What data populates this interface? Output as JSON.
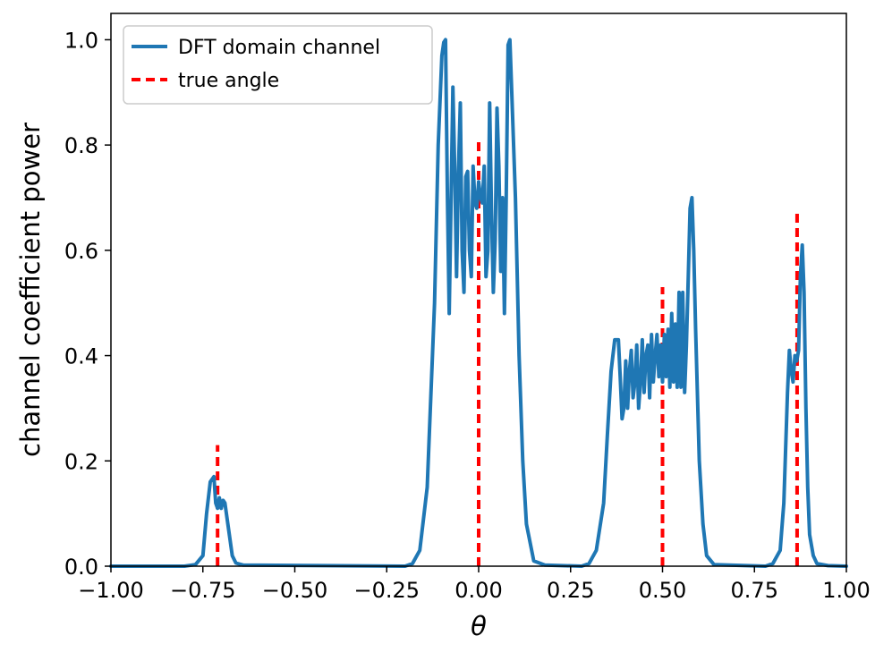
{
  "chart_data": {
    "type": "line",
    "xlabel": "θ",
    "ylabel": "channel coefficient power",
    "xlim": [
      -1.0,
      1.0
    ],
    "ylim": [
      0.0,
      1.05
    ],
    "x_ticks": [
      "−1.00",
      "−0.75",
      "−0.50",
      "−0.25",
      "0.00",
      "0.25",
      "0.50",
      "0.75",
      "1.00"
    ],
    "x_tick_values": [
      -1.0,
      -0.75,
      -0.5,
      -0.25,
      0.0,
      0.25,
      0.5,
      0.75,
      1.0
    ],
    "y_ticks": [
      "0.0",
      "0.2",
      "0.4",
      "0.6",
      "0.8",
      "1.0"
    ],
    "y_tick_values": [
      0.0,
      0.2,
      0.4,
      0.6,
      0.8,
      1.0
    ],
    "grid": false,
    "legend_position": "top-left",
    "series": [
      {
        "name": "DFT domain channel",
        "style": "solid",
        "color": "#1f77b4",
        "points": [
          [
            -1.0,
            0.0
          ],
          [
            -0.8,
            0.0
          ],
          [
            -0.77,
            0.003
          ],
          [
            -0.75,
            0.02
          ],
          [
            -0.74,
            0.1
          ],
          [
            -0.73,
            0.16
          ],
          [
            -0.72,
            0.17
          ],
          [
            -0.715,
            0.12
          ],
          [
            -0.71,
            0.11
          ],
          [
            -0.705,
            0.13
          ],
          [
            -0.7,
            0.11
          ],
          [
            -0.695,
            0.125
          ],
          [
            -0.69,
            0.12
          ],
          [
            -0.68,
            0.07
          ],
          [
            -0.67,
            0.02
          ],
          [
            -0.66,
            0.006
          ],
          [
            -0.64,
            0.002
          ],
          [
            -0.2,
            0.0
          ],
          [
            -0.18,
            0.005
          ],
          [
            -0.16,
            0.03
          ],
          [
            -0.14,
            0.15
          ],
          [
            -0.12,
            0.5
          ],
          [
            -0.11,
            0.8
          ],
          [
            -0.1,
            0.97
          ],
          [
            -0.095,
            0.995
          ],
          [
            -0.09,
            1.0
          ],
          [
            -0.085,
            0.7
          ],
          [
            -0.08,
            0.48
          ],
          [
            -0.075,
            0.7
          ],
          [
            -0.07,
            0.91
          ],
          [
            -0.065,
            0.75
          ],
          [
            -0.06,
            0.55
          ],
          [
            -0.055,
            0.75
          ],
          [
            -0.05,
            0.88
          ],
          [
            -0.045,
            0.6
          ],
          [
            -0.04,
            0.52
          ],
          [
            -0.035,
            0.74
          ],
          [
            -0.03,
            0.75
          ],
          [
            -0.025,
            0.6
          ],
          [
            -0.02,
            0.55
          ],
          [
            -0.015,
            0.76
          ],
          [
            -0.01,
            0.69
          ],
          [
            -0.005,
            0.68
          ],
          [
            0.0,
            0.73
          ],
          [
            0.005,
            0.7
          ],
          [
            0.01,
            0.69
          ],
          [
            0.015,
            0.76
          ],
          [
            0.02,
            0.55
          ],
          [
            0.025,
            0.6
          ],
          [
            0.03,
            0.88
          ],
          [
            0.035,
            0.67
          ],
          [
            0.04,
            0.52
          ],
          [
            0.045,
            0.62
          ],
          [
            0.05,
            0.87
          ],
          [
            0.055,
            0.76
          ],
          [
            0.06,
            0.56
          ],
          [
            0.065,
            0.7
          ],
          [
            0.07,
            0.48
          ],
          [
            0.075,
            0.7
          ],
          [
            0.08,
            0.99
          ],
          [
            0.085,
            1.0
          ],
          [
            0.09,
            0.9
          ],
          [
            0.1,
            0.7
          ],
          [
            0.11,
            0.4
          ],
          [
            0.12,
            0.2
          ],
          [
            0.13,
            0.08
          ],
          [
            0.15,
            0.01
          ],
          [
            0.18,
            0.002
          ],
          [
            0.28,
            0.0
          ],
          [
            0.3,
            0.005
          ],
          [
            0.32,
            0.03
          ],
          [
            0.34,
            0.12
          ],
          [
            0.35,
            0.25
          ],
          [
            0.36,
            0.37
          ],
          [
            0.37,
            0.43
          ],
          [
            0.38,
            0.43
          ],
          [
            0.385,
            0.36
          ],
          [
            0.39,
            0.28
          ],
          [
            0.395,
            0.3
          ],
          [
            0.4,
            0.39
          ],
          [
            0.405,
            0.3
          ],
          [
            0.41,
            0.37
          ],
          [
            0.415,
            0.41
          ],
          [
            0.42,
            0.32
          ],
          [
            0.425,
            0.35
          ],
          [
            0.43,
            0.42
          ],
          [
            0.435,
            0.3
          ],
          [
            0.44,
            0.35
          ],
          [
            0.445,
            0.43
          ],
          [
            0.45,
            0.33
          ],
          [
            0.455,
            0.4
          ],
          [
            0.46,
            0.42
          ],
          [
            0.465,
            0.32
          ],
          [
            0.47,
            0.44
          ],
          [
            0.475,
            0.35
          ],
          [
            0.48,
            0.4
          ],
          [
            0.485,
            0.44
          ],
          [
            0.49,
            0.36
          ],
          [
            0.495,
            0.42
          ],
          [
            0.5,
            0.35
          ],
          [
            0.505,
            0.44
          ],
          [
            0.51,
            0.36
          ],
          [
            0.515,
            0.45
          ],
          [
            0.52,
            0.34
          ],
          [
            0.525,
            0.48
          ],
          [
            0.53,
            0.35
          ],
          [
            0.535,
            0.46
          ],
          [
            0.54,
            0.34
          ],
          [
            0.545,
            0.52
          ],
          [
            0.55,
            0.34
          ],
          [
            0.555,
            0.52
          ],
          [
            0.56,
            0.33
          ],
          [
            0.565,
            0.42
          ],
          [
            0.57,
            0.55
          ],
          [
            0.575,
            0.68
          ],
          [
            0.58,
            0.7
          ],
          [
            0.585,
            0.6
          ],
          [
            0.59,
            0.45
          ],
          [
            0.6,
            0.2
          ],
          [
            0.61,
            0.08
          ],
          [
            0.62,
            0.02
          ],
          [
            0.64,
            0.003
          ],
          [
            0.78,
            0.0
          ],
          [
            0.8,
            0.005
          ],
          [
            0.82,
            0.03
          ],
          [
            0.83,
            0.12
          ],
          [
            0.84,
            0.33
          ],
          [
            0.845,
            0.41
          ],
          [
            0.85,
            0.37
          ],
          [
            0.855,
            0.35
          ],
          [
            0.86,
            0.4
          ],
          [
            0.865,
            0.39
          ],
          [
            0.87,
            0.41
          ],
          [
            0.875,
            0.55
          ],
          [
            0.88,
            0.61
          ],
          [
            0.885,
            0.52
          ],
          [
            0.89,
            0.3
          ],
          [
            0.895,
            0.15
          ],
          [
            0.9,
            0.06
          ],
          [
            0.91,
            0.02
          ],
          [
            0.92,
            0.005
          ],
          [
            0.95,
            0.001
          ],
          [
            1.0,
            0.0
          ]
        ]
      },
      {
        "name": "true angle",
        "style": "dashed",
        "color": "#ff0000",
        "lines": [
          {
            "x": -0.71,
            "ymin": 0.0,
            "ymax": 0.23
          },
          {
            "x": 0.0,
            "ymin": 0.0,
            "ymax": 0.81
          },
          {
            "x": 0.5,
            "ymin": 0.0,
            "ymax": 0.53
          },
          {
            "x": 0.866,
            "ymin": 0.0,
            "ymax": 0.67
          }
        ]
      }
    ]
  }
}
